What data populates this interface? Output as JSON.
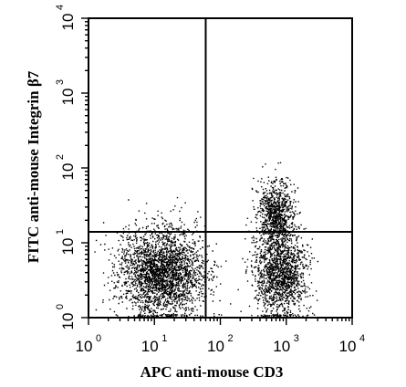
{
  "chart_data": {
    "type": "scatter",
    "xlabel": "APC anti-mouse CD3",
    "ylabel": "FITC anti-mouse Integrin β7",
    "x_scale": "log",
    "y_scale": "log",
    "xlim": [
      1,
      10000
    ],
    "ylim": [
      1,
      10000
    ],
    "x_ticks": [
      {
        "base": "10",
        "exp": "0",
        "value": 1
      },
      {
        "base": "10",
        "exp": "1",
        "value": 10
      },
      {
        "base": "10",
        "exp": "2",
        "value": 100
      },
      {
        "base": "10",
        "exp": "3",
        "value": 1000
      },
      {
        "base": "10",
        "exp": "4",
        "value": 10000
      }
    ],
    "y_ticks": [
      {
        "base": "10",
        "exp": "0",
        "value": 1
      },
      {
        "base": "10",
        "exp": "1",
        "value": 10
      },
      {
        "base": "10",
        "exp": "2",
        "value": 100
      },
      {
        "base": "10",
        "exp": "3",
        "value": 1000
      },
      {
        "base": "10",
        "exp": "4",
        "value": 10000
      }
    ],
    "quadrant_gates": {
      "x": 60,
      "y": 14
    },
    "grid": false,
    "point_color": "#000000",
    "populations": [
      {
        "x_center": 13,
        "y_center": 4,
        "x_spread_log": 0.33,
        "y_spread_log": 0.3,
        "count": 2600
      },
      {
        "x_center": 800,
        "y_center": 4,
        "x_spread_log": 0.2,
        "y_spread_log": 0.3,
        "count": 1500
      },
      {
        "x_center": 700,
        "y_center": 25,
        "x_spread_log": 0.14,
        "y_spread_log": 0.22,
        "count": 850
      }
    ]
  }
}
